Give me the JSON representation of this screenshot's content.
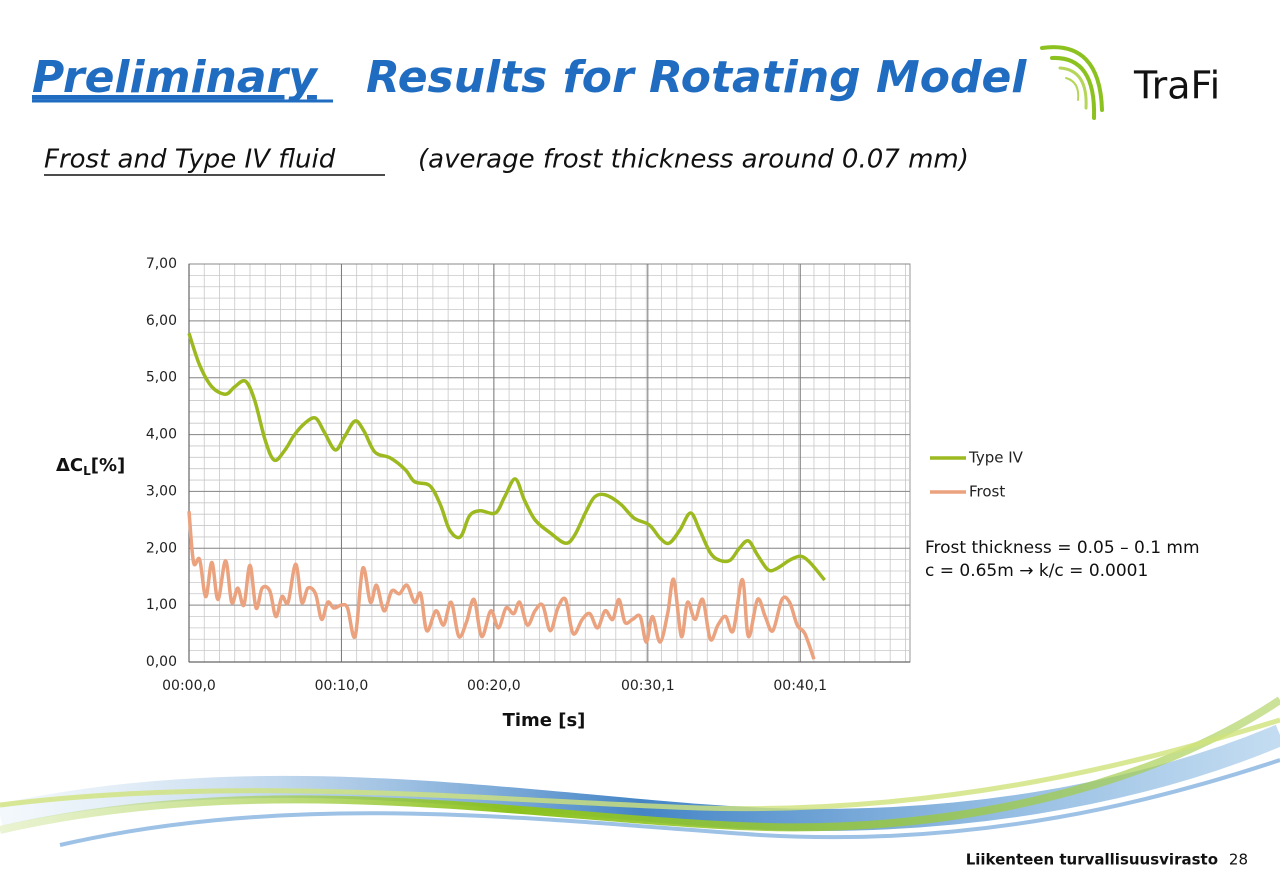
{
  "header": {
    "title_underlined": "Preliminary",
    "title_rest": "Results for Rotating Model",
    "logo": "TraFi"
  },
  "subtitle": {
    "underlined": "Frost and Type IV fluid",
    "rest": "(average frost thickness around 0.07 mm)"
  },
  "chart_data": {
    "type": "line",
    "x_label": "Time [s]",
    "y_label": {
      "text": "ΔC",
      "subscript": "L",
      "suffix": "[%]"
    },
    "xlim": [
      0,
      47.3
    ],
    "ylim": [
      0,
      7
    ],
    "xticks": [
      {
        "value": 0,
        "label": "00:00,0"
      },
      {
        "value": 10,
        "label": "00:10,0"
      },
      {
        "value": 20,
        "label": "00:20,0"
      },
      {
        "value": 30.1,
        "label": "00:30,1"
      },
      {
        "value": 40.1,
        "label": "00:40,1"
      }
    ],
    "yticks": [
      {
        "value": 0,
        "label": "0,00"
      },
      {
        "value": 1,
        "label": "1,00"
      },
      {
        "value": 2,
        "label": "2,00"
      },
      {
        "value": 3,
        "label": "3,00"
      },
      {
        "value": 4,
        "label": "4,00"
      },
      {
        "value": 5,
        "label": "5,00"
      },
      {
        "value": 6,
        "label": "6,00"
      },
      {
        "value": 7,
        "label": "7,00"
      }
    ],
    "grid": true,
    "minor_grid": true,
    "legend": "right",
    "series": [
      {
        "name": "Type IV",
        "color": "#9cba20",
        "x": [
          0,
          0.7,
          1.5,
          2.4,
          3.0,
          3.7,
          4.3,
          5.0,
          5.6,
          6.3,
          6.9,
          7.6,
          8.3,
          8.9,
          9.6,
          10.2,
          10.9,
          11.5,
          12.2,
          13.2,
          14.2,
          14.8,
          15.8,
          16.5,
          17.1,
          17.8,
          18.4,
          19.1,
          20.1,
          20.7,
          21.4,
          22.0,
          22.7,
          23.7,
          24.7,
          25.3,
          26.0,
          26.6,
          27.3,
          28.3,
          29.2,
          30.2,
          30.9,
          31.5,
          32.2,
          32.9,
          33.5,
          34.2,
          34.8,
          35.5,
          36.1,
          36.7,
          37.3,
          38.0,
          38.6,
          39.4,
          40.1,
          40.7,
          41.7
        ],
        "values": [
          5.78,
          5.22,
          4.84,
          4.71,
          4.84,
          4.94,
          4.61,
          3.9,
          3.55,
          3.73,
          3.99,
          4.2,
          4.29,
          4.03,
          3.73,
          3.96,
          4.24,
          4.05,
          3.69,
          3.59,
          3.38,
          3.17,
          3.1,
          2.76,
          2.32,
          2.2,
          2.57,
          2.66,
          2.62,
          2.9,
          3.22,
          2.85,
          2.5,
          2.27,
          2.09,
          2.23,
          2.62,
          2.9,
          2.94,
          2.78,
          2.53,
          2.41,
          2.18,
          2.09,
          2.32,
          2.62,
          2.32,
          1.92,
          1.79,
          1.79,
          2.0,
          2.13,
          1.88,
          1.62,
          1.65,
          1.79,
          1.86,
          1.76,
          1.44
        ]
      },
      {
        "name": "Frost",
        "color": "#eba27e",
        "x": [
          0,
          0.3,
          0.7,
          1.1,
          1.5,
          1.9,
          2.4,
          2.8,
          3.2,
          3.6,
          4.0,
          4.4,
          4.8,
          5.3,
          5.7,
          6.1,
          6.5,
          7.0,
          7.4,
          7.8,
          8.3,
          8.7,
          9.1,
          9.5,
          10.0,
          10.4,
          10.9,
          11.4,
          11.9,
          12.3,
          12.8,
          13.3,
          13.8,
          14.3,
          14.8,
          15.2,
          15.6,
          16.2,
          16.7,
          17.2,
          17.7,
          18.2,
          18.7,
          19.2,
          19.8,
          20.3,
          20.8,
          21.3,
          21.7,
          22.2,
          22.7,
          23.2,
          23.7,
          24.2,
          24.7,
          25.2,
          25.8,
          26.3,
          26.8,
          27.3,
          27.8,
          28.2,
          28.6,
          29.1,
          29.6,
          30.0,
          30.4,
          30.9,
          31.4,
          31.8,
          32.3,
          32.7,
          33.2,
          33.7,
          34.2,
          34.7,
          35.2,
          35.7,
          36.3,
          36.7,
          37.3,
          37.8,
          38.3,
          38.9,
          39.4,
          39.9,
          40.4,
          41.0
        ],
        "values": [
          2.65,
          1.75,
          1.8,
          1.15,
          1.75,
          1.1,
          1.78,
          1.05,
          1.3,
          1.0,
          1.7,
          0.95,
          1.3,
          1.25,
          0.8,
          1.15,
          1.05,
          1.72,
          1.05,
          1.3,
          1.2,
          0.75,
          1.05,
          0.95,
          1.0,
          0.95,
          0.45,
          1.65,
          1.05,
          1.35,
          0.9,
          1.25,
          1.2,
          1.35,
          1.05,
          1.2,
          0.55,
          0.9,
          0.65,
          1.05,
          0.45,
          0.7,
          1.1,
          0.45,
          0.9,
          0.6,
          0.95,
          0.85,
          1.05,
          0.65,
          0.9,
          1.0,
          0.55,
          0.95,
          1.1,
          0.5,
          0.75,
          0.85,
          0.6,
          0.9,
          0.75,
          1.1,
          0.7,
          0.75,
          0.8,
          0.35,
          0.8,
          0.35,
          0.85,
          1.45,
          0.45,
          1.05,
          0.75,
          1.1,
          0.4,
          0.65,
          0.8,
          0.55,
          1.45,
          0.45,
          1.1,
          0.8,
          0.55,
          1.1,
          1.05,
          0.65,
          0.5,
          0.05
        ]
      }
    ],
    "annotations": [
      "Frost thickness = 0.05 – 0.1 mm",
      "c = 0.65m  →  k/c = 0.0001"
    ]
  },
  "footer": {
    "organization": "Liikenteen turvallisuusvirasto",
    "page": "28"
  }
}
